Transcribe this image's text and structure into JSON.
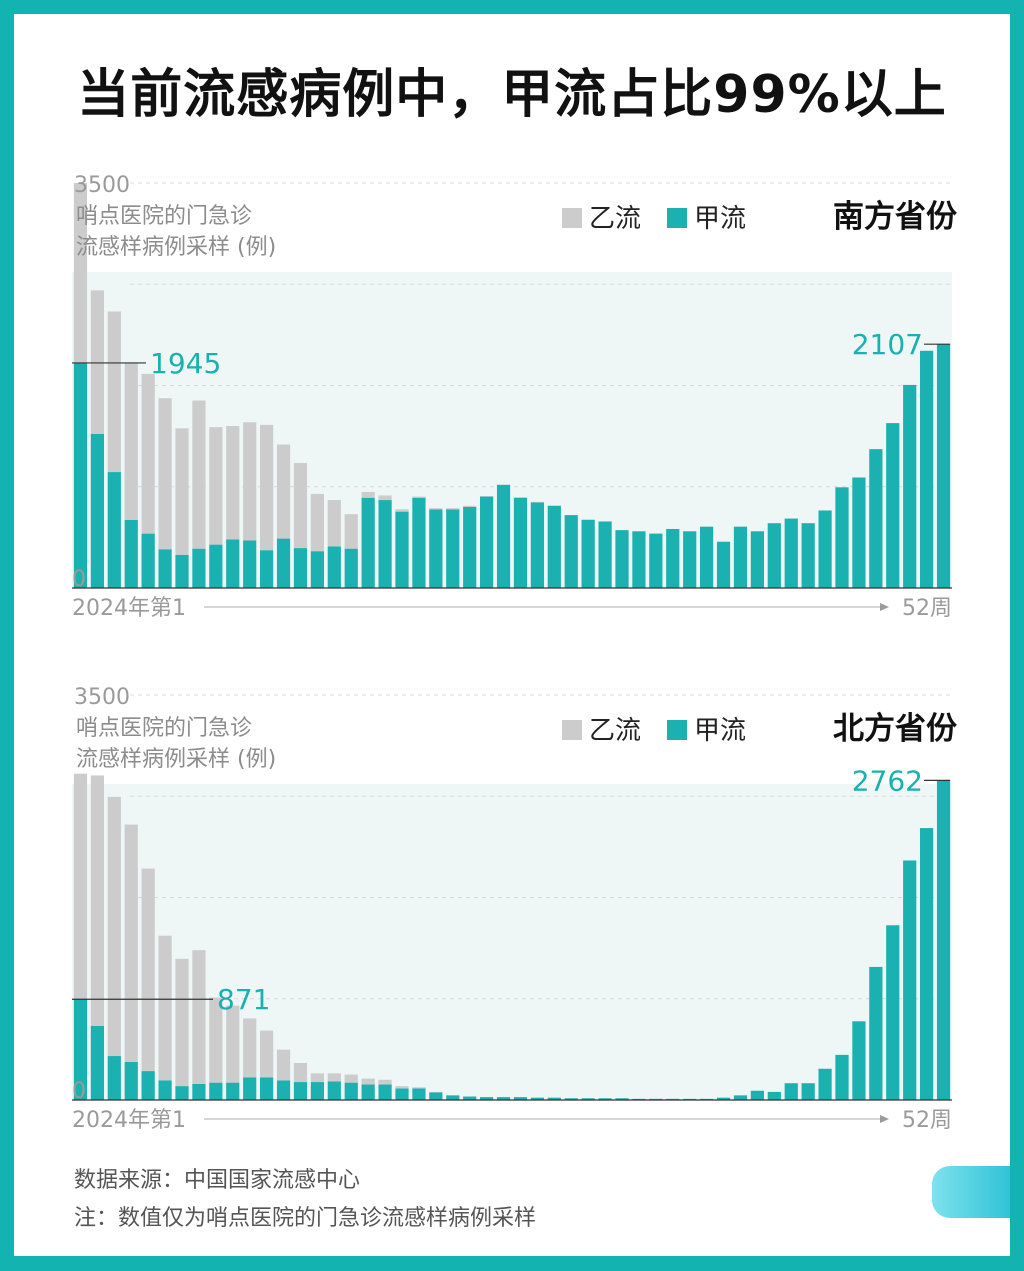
{
  "title": "当前流感病例中，甲流占比99%以上",
  "colors": {
    "frame": "#12b3b1",
    "flu_a": "#1ab1b0",
    "flu_b": "#cccccc",
    "plot_bg": "#eef7f6",
    "highlight": "#17b1b0"
  },
  "footer": {
    "source": "数据来源：中国国家流感中心",
    "note": "注：数值仅为哨点医院的门急诊流感样病例采样"
  },
  "chart_data": [
    {
      "type": "bar",
      "stacked": true,
      "region_label": "南方省份",
      "ylabel_line1": "哨点医院的门急诊",
      "ylabel_line2": "流感样病例采样 (例)",
      "ylim": [
        0,
        3500
      ],
      "yticks": [
        "3500",
        "0"
      ],
      "x_start_label": "2024年第1",
      "x_end_label": "52周",
      "grid": true,
      "legend": [
        {
          "name": "乙流",
          "color": "#cccccc"
        },
        {
          "name": "甲流",
          "color": "#1ab1b0"
        }
      ],
      "annotations": [
        {
          "week": 1,
          "value": 1945,
          "label": "1945"
        },
        {
          "week": 52,
          "value": 2107,
          "label": "2107"
        }
      ],
      "weeks": [
        1,
        2,
        3,
        4,
        5,
        6,
        7,
        8,
        9,
        10,
        11,
        12,
        13,
        14,
        15,
        16,
        17,
        18,
        19,
        20,
        21,
        22,
        23,
        24,
        25,
        26,
        27,
        28,
        29,
        30,
        31,
        32,
        33,
        34,
        35,
        36,
        37,
        38,
        39,
        40,
        41,
        42,
        43,
        44,
        45,
        46,
        47,
        48,
        49,
        50,
        51,
        52
      ],
      "series": [
        {
          "name": "甲流",
          "values": [
            1945,
            1332,
            1002,
            588,
            470,
            335,
            287,
            340,
            375,
            420,
            412,
            327,
            427,
            345,
            318,
            360,
            340,
            780,
            760,
            660,
            780,
            680,
            680,
            700,
            790,
            890,
            780,
            740,
            710,
            630,
            590,
            575,
            500,
            490,
            470,
            510,
            490,
            530,
            400,
            530,
            490,
            560,
            600,
            560,
            670,
            870,
            955,
            1200,
            1425,
            1755,
            2050,
            2107
          ]
        },
        {
          "name": "乙流",
          "values": [
            1555,
            1240,
            1388,
            1352,
            1380,
            1305,
            1093,
            1280,
            1015,
            980,
            1020,
            1083,
            813,
            735,
            495,
            400,
            298,
            50,
            40,
            20,
            10,
            10,
            10,
            10,
            5,
            5,
            5,
            5,
            5,
            0,
            0,
            0,
            0,
            0,
            0,
            0,
            0,
            0,
            0,
            0,
            0,
            0,
            0,
            0,
            0,
            0,
            0,
            0,
            0,
            0,
            0,
            0
          ]
        }
      ]
    },
    {
      "type": "bar",
      "stacked": true,
      "region_label": "北方省份",
      "ylabel_line1": "哨点医院的门急诊",
      "ylabel_line2": "流感样病例采样 (例)",
      "ylim": [
        0,
        3500
      ],
      "yticks": [
        "3500",
        "0"
      ],
      "x_start_label": "2024年第1",
      "x_end_label": "52周",
      "grid": true,
      "legend": [
        {
          "name": "乙流",
          "color": "#cccccc"
        },
        {
          "name": "甲流",
          "color": "#1ab1b0"
        }
      ],
      "annotations": [
        {
          "week": 1,
          "value": 871,
          "label": "871"
        },
        {
          "week": 52,
          "value": 2762,
          "label": "2762"
        }
      ],
      "weeks": [
        1,
        2,
        3,
        4,
        5,
        6,
        7,
        8,
        9,
        10,
        11,
        12,
        13,
        14,
        15,
        16,
        17,
        18,
        19,
        20,
        21,
        22,
        23,
        24,
        25,
        26,
        27,
        28,
        29,
        30,
        31,
        32,
        33,
        34,
        35,
        36,
        37,
        38,
        39,
        40,
        41,
        42,
        43,
        44,
        45,
        46,
        47,
        48,
        49,
        50,
        51,
        52
      ],
      "series": [
        {
          "name": "甲流",
          "values": [
            871,
            640,
            380,
            330,
            250,
            170,
            120,
            140,
            150,
            150,
            195,
            195,
            170,
            155,
            155,
            160,
            150,
            135,
            135,
            100,
            100,
            65,
            40,
            30,
            25,
            25,
            25,
            20,
            20,
            15,
            15,
            15,
            15,
            10,
            10,
            10,
            10,
            10,
            20,
            40,
            80,
            70,
            145,
            145,
            270,
            390,
            680,
            1150,
            1510,
            2070,
            2350,
            2762
          ]
        },
        {
          "name": "乙流",
          "values": [
            1949,
            2165,
            2240,
            2050,
            1750,
            1250,
            1100,
            1155,
            735,
            665,
            510,
            405,
            265,
            165,
            75,
            70,
            70,
            50,
            40,
            20,
            10,
            5,
            0,
            0,
            0,
            0,
            0,
            0,
            0,
            0,
            0,
            0,
            0,
            0,
            0,
            0,
            0,
            0,
            0,
            0,
            0,
            0,
            0,
            0,
            0,
            0,
            0,
            0,
            0,
            0,
            0,
            0
          ]
        }
      ]
    }
  ]
}
